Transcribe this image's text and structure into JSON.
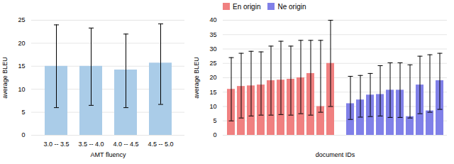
{
  "chart_data": [
    {
      "type": "bar",
      "categories": [
        "3.0 -- 3.5",
        "3.5 -- 4.0",
        "4.0 -- 4.5",
        "4.5 -- 5.0"
      ],
      "values": [
        15.0,
        15.0,
        14.2,
        15.7
      ],
      "err_low": [
        9.0,
        8.5,
        8.2,
        9.0
      ],
      "err_high": [
        9.0,
        8.3,
        7.8,
        8.5
      ],
      "color": "#aacce8",
      "xlabel": "AMT fluency",
      "ylabel": "average BLEU",
      "ylim": [
        0,
        25
      ],
      "yticks": [
        0,
        5,
        10,
        15,
        20,
        25
      ],
      "grid": true
    },
    {
      "type": "bar",
      "series": [
        {
          "name": "En origin",
          "color": "#f08080",
          "values": [
            16.0,
            17.0,
            17.2,
            17.5,
            19.0,
            19.2,
            19.5,
            20.0,
            21.5,
            10.0,
            25.0
          ],
          "err_low": [
            11.0,
            11.0,
            10.5,
            10.5,
            12.0,
            12.0,
            12.5,
            12.5,
            14.5,
            2.0,
            15.0
          ],
          "err_high": [
            11.0,
            11.5,
            12.0,
            11.5,
            12.0,
            13.5,
            11.5,
            13.0,
            11.5,
            23.0,
            15.0
          ]
        },
        {
          "name": "Ne origin",
          "color": "#8080e8",
          "values": [
            11.0,
            12.3,
            14.0,
            14.2,
            15.7,
            15.7,
            6.5,
            17.5,
            8.5,
            19.0
          ],
          "err_low": [
            5.5,
            6.0,
            7.5,
            7.5,
            9.5,
            9.5,
            0.5,
            10.0,
            0.5,
            10.0
          ],
          "err_high": [
            9.5,
            8.5,
            7.5,
            10.0,
            9.5,
            9.5,
            18.0,
            10.0,
            19.5,
            9.5
          ]
        }
      ],
      "xlabel": "document IDs",
      "ylabel": "average BLEU",
      "ylim": [
        0,
        40
      ],
      "yticks": [
        0,
        5,
        10,
        15,
        20,
        25,
        30,
        35,
        40
      ],
      "grid": true,
      "legend": "upper left",
      "tick_labels": "y"
    }
  ]
}
